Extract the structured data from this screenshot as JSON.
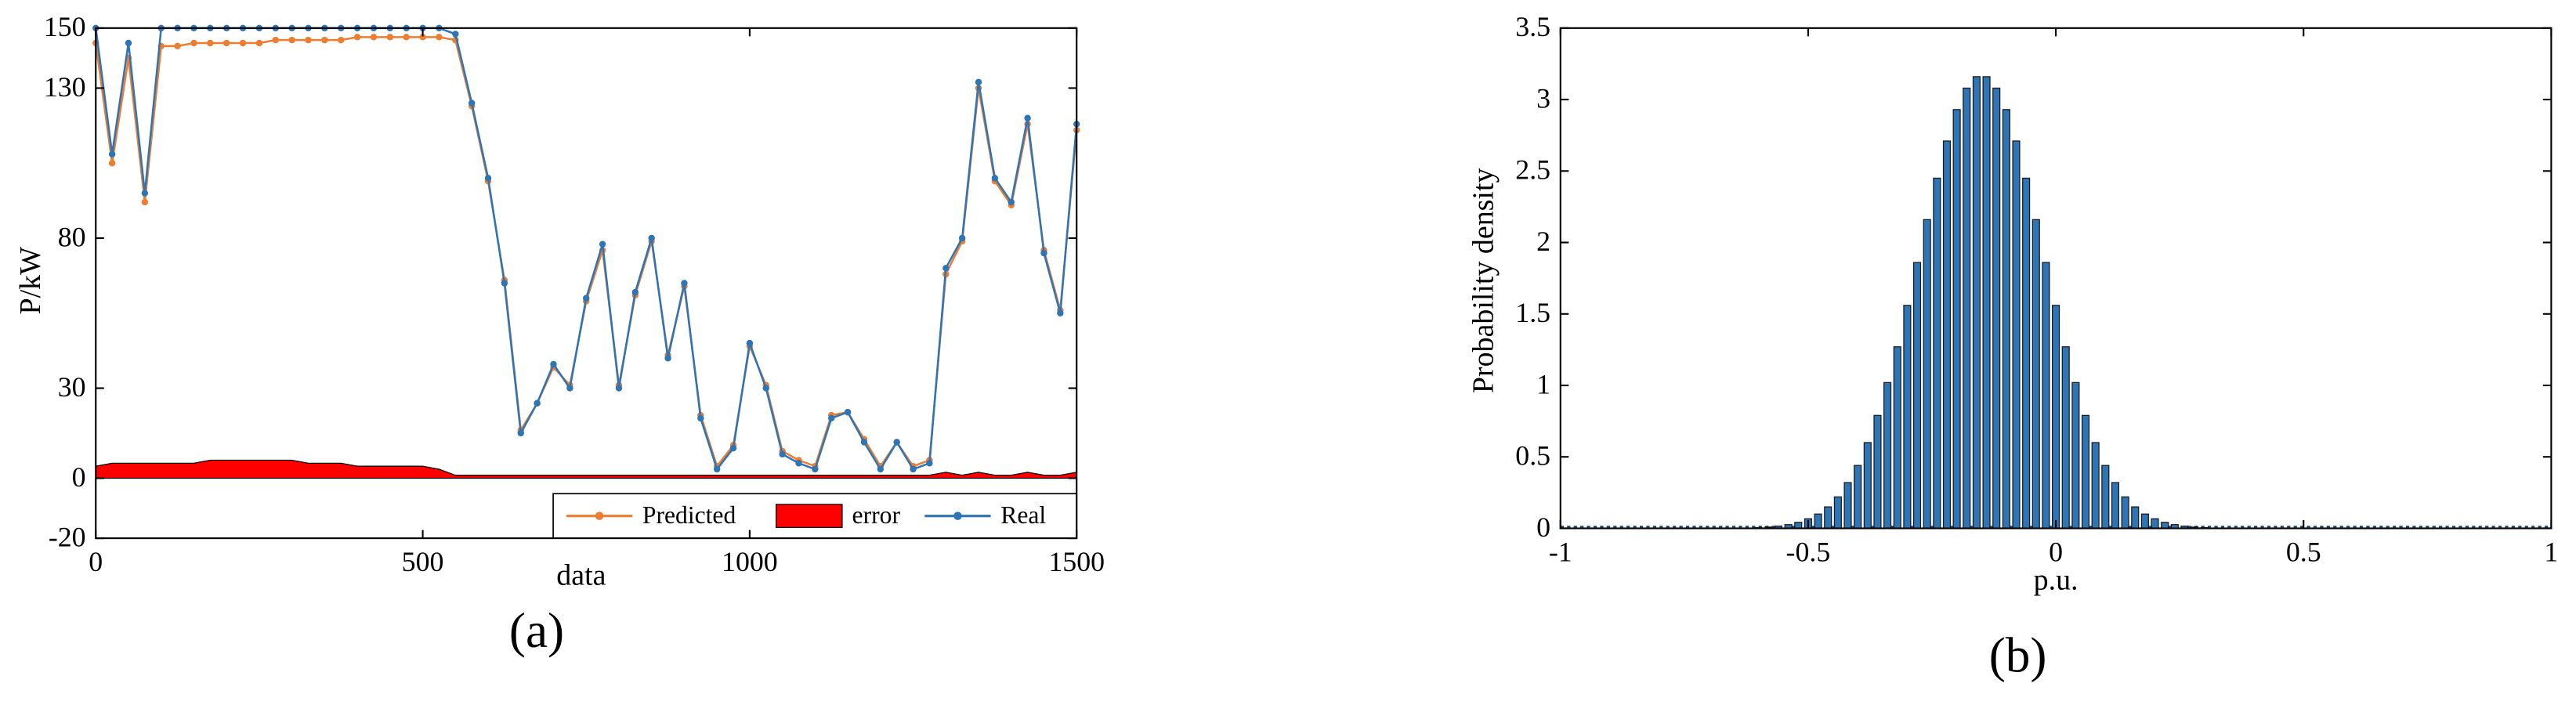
{
  "chart_data": [
    {
      "type": "line",
      "panel_label": "(a)",
      "xlabel": "data",
      "ylabel": "P/kW",
      "x": [
        0,
        25,
        50,
        75,
        100,
        125,
        150,
        175,
        200,
        225,
        250,
        275,
        300,
        325,
        350,
        375,
        400,
        425,
        450,
        475,
        500,
        525,
        550,
        575,
        600,
        625,
        650,
        675,
        700,
        725,
        750,
        775,
        800,
        825,
        850,
        875,
        900,
        925,
        950,
        975,
        1000,
        1025,
        1050,
        1075,
        1100,
        1125,
        1150,
        1175,
        1200,
        1225,
        1250,
        1275,
        1300,
        1325,
        1350,
        1375,
        1400,
        1425,
        1450,
        1475,
        1500
      ],
      "series": [
        {
          "name": "Predicted",
          "color": "#ed7d31",
          "values": [
            145,
            105,
            140,
            92,
            144,
            144,
            145,
            145,
            145,
            145,
            145,
            146,
            146,
            146,
            146,
            146,
            147,
            147,
            147,
            147,
            147,
            147,
            146,
            124,
            99,
            66,
            16,
            25,
            37,
            31,
            59,
            76,
            31,
            61,
            79,
            41,
            64,
            21,
            4,
            11,
            44,
            31,
            9,
            6,
            4,
            21,
            22,
            13,
            4,
            12,
            4,
            6,
            68,
            79,
            130,
            99,
            91,
            118,
            76,
            56,
            116
          ]
        },
        {
          "name": "error",
          "color": "#ff0000",
          "style": "area",
          "values": [
            4,
            5,
            5,
            5,
            5,
            5,
            5,
            6,
            6,
            6,
            6,
            6,
            6,
            5,
            5,
            5,
            4,
            4,
            4,
            4,
            4,
            3,
            1,
            1,
            1,
            1,
            1,
            1,
            1,
            1,
            1,
            1,
            1,
            1,
            1,
            1,
            1,
            1,
            1,
            1,
            1,
            1,
            1,
            1,
            1,
            1,
            1,
            1,
            1,
            1,
            1,
            1,
            2,
            1,
            2,
            1,
            1,
            2,
            1,
            1,
            2
          ]
        },
        {
          "name": "Real",
          "color": "#2e75b6",
          "values": [
            150,
            108,
            145,
            95,
            150,
            150,
            150,
            150,
            150,
            150,
            150,
            150,
            150,
            150,
            150,
            150,
            150,
            150,
            150,
            150,
            150,
            150,
            148,
            125,
            100,
            65,
            15,
            25,
            38,
            30,
            60,
            78,
            30,
            62,
            80,
            40,
            65,
            20,
            3,
            10,
            45,
            30,
            8,
            5,
            3,
            20,
            22,
            12,
            3,
            12,
            3,
            5,
            70,
            80,
            132,
            100,
            92,
            120,
            75,
            55,
            118
          ]
        }
      ],
      "xlim": [
        0,
        1500
      ],
      "xticks": [
        0,
        500,
        1000,
        1500
      ],
      "ylim": [
        -20,
        150
      ],
      "yticks": [
        -20,
        0,
        30,
        80,
        130,
        150
      ],
      "legend": "lower right"
    },
    {
      "type": "bar",
      "panel_label": "(b)",
      "xlabel": "p.u.",
      "ylabel": "Probability density",
      "color": "#2e75b6",
      "x": [
        -0.6,
        -0.58,
        -0.56,
        -0.54,
        -0.52,
        -0.5,
        -0.48,
        -0.46,
        -0.44,
        -0.42,
        -0.4,
        -0.38,
        -0.36,
        -0.34,
        -0.32,
        -0.3,
        -0.28,
        -0.26,
        -0.24,
        -0.22,
        -0.2,
        -0.18,
        -0.16,
        -0.14,
        -0.12,
        -0.1,
        -0.08,
        -0.06,
        -0.04,
        -0.02,
        0,
        0.02,
        0.04,
        0.06,
        0.08,
        0.1,
        0.12,
        0.14,
        0.16,
        0.18,
        0.2,
        0.22,
        0.24,
        0.26,
        0.28,
        0.3
      ],
      "values": [
        0.005,
        0.009,
        0.016,
        0.026,
        0.042,
        0.067,
        0.1,
        0.15,
        0.22,
        0.32,
        0.44,
        0.6,
        0.79,
        1.02,
        1.27,
        1.56,
        1.86,
        2.16,
        2.45,
        2.71,
        2.93,
        3.08,
        3.16,
        3.16,
        3.08,
        2.93,
        2.71,
        2.45,
        2.16,
        1.86,
        1.56,
        1.27,
        1.02,
        0.79,
        0.6,
        0.44,
        0.32,
        0.22,
        0.15,
        0.1,
        0.067,
        0.042,
        0.026,
        0.016,
        0.009,
        0.005
      ],
      "xlim": [
        -1,
        1
      ],
      "xticks": [
        -1,
        -0.5,
        0,
        0.5,
        1
      ],
      "ylim": [
        0,
        3.5
      ],
      "yticks": [
        0,
        0.5,
        1,
        1.5,
        2,
        2.5,
        3,
        3.5
      ]
    }
  ]
}
